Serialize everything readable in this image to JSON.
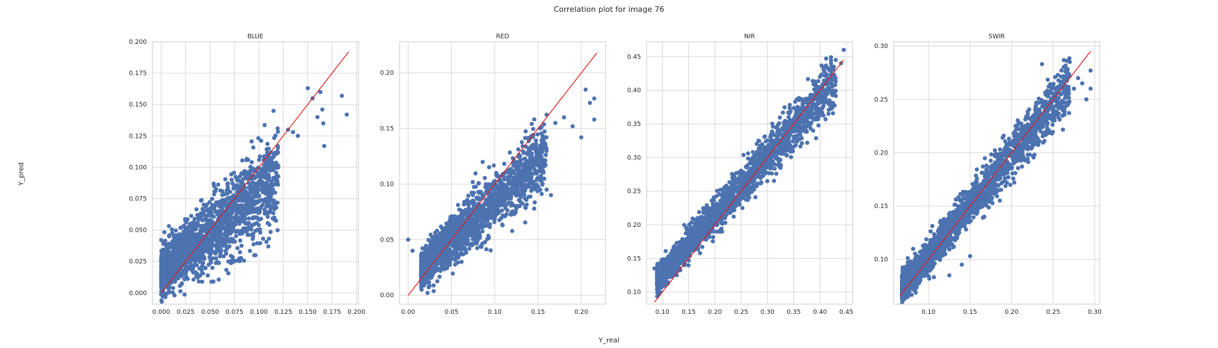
{
  "figure": {
    "title": "Correlation plot for image 76",
    "xlabel": "Y_real",
    "ylabel": "Y_pred"
  },
  "colors": {
    "points": "#4c72b0",
    "identity_line": "#e41a1c",
    "grid": "#d9d9d9",
    "spine": "#cccccc",
    "text": "#262626"
  },
  "chart_data": [
    {
      "type": "scatter",
      "title": "BLUE",
      "xlim": [
        -0.009,
        0.202
      ],
      "ylim": [
        -0.009,
        0.2
      ],
      "xticks": [
        "0.000",
        "0.025",
        "0.050",
        "0.075",
        "0.100",
        "0.125",
        "0.150",
        "0.175",
        "0.200"
      ],
      "yticks": [
        "0.000",
        "0.025",
        "0.050",
        "0.075",
        "0.100",
        "0.125",
        "0.150",
        "0.175",
        "0.200"
      ],
      "grid": true,
      "identity_line": [
        0.0,
        0.192
      ],
      "cloud": {
        "x_range": [
          0.0,
          0.12
        ],
        "intercept": 0.016,
        "slope": 0.62,
        "spread": 0.012,
        "n": 1900
      },
      "points": [
        [
          0.15,
          0.163
        ],
        [
          0.155,
          0.155
        ],
        [
          0.163,
          0.16
        ],
        [
          0.165,
          0.146
        ],
        [
          0.166,
          0.135
        ],
        [
          0.167,
          0.117
        ],
        [
          0.185,
          0.157
        ],
        [
          0.19,
          0.142
        ],
        [
          0.115,
          0.145
        ],
        [
          0.13,
          0.13
        ],
        [
          0.135,
          0.128
        ],
        [
          0.14,
          0.125
        ],
        [
          0.16,
          0.14
        ]
      ]
    },
    {
      "type": "scatter",
      "title": "RED",
      "xlim": [
        -0.01,
        0.228
      ],
      "ylim": [
        -0.008,
        0.228
      ],
      "xticks": [
        "0.00",
        "0.05",
        "0.10",
        "0.15",
        "0.20"
      ],
      "yticks": [
        "0.00",
        "0.05",
        "0.10",
        "0.15",
        "0.20"
      ],
      "grid": true,
      "identity_line": [
        0.0,
        0.218
      ],
      "cloud": {
        "x_range": [
          0.015,
          0.16
        ],
        "intercept": 0.012,
        "slope": 0.73,
        "spread": 0.01,
        "n": 1900
      },
      "points": [
        [
          0.205,
          0.185
        ],
        [
          0.215,
          0.177
        ],
        [
          0.21,
          0.173
        ],
        [
          0.215,
          0.158
        ],
        [
          0.2,
          0.142
        ],
        [
          0.19,
          0.152
        ],
        [
          0.18,
          0.16
        ],
        [
          0.17,
          0.155
        ],
        [
          0.005,
          0.04
        ],
        [
          0.0,
          0.05
        ],
        [
          0.16,
          0.095
        ],
        [
          0.165,
          0.09
        ]
      ]
    },
    {
      "type": "scatter",
      "title": "NIR",
      "xlim": [
        0.07,
        0.462
      ],
      "ylim": [
        0.082,
        0.472
      ],
      "xticks": [
        "0.10",
        "0.15",
        "0.20",
        "0.25",
        "0.30",
        "0.35",
        "0.40",
        "0.45"
      ],
      "yticks": [
        "0.10",
        "0.15",
        "0.20",
        "0.25",
        "0.30",
        "0.35",
        "0.40",
        "0.45"
      ],
      "grid": true,
      "identity_line": [
        0.085,
        0.445
      ],
      "cloud": {
        "x_range": [
          0.09,
          0.43
        ],
        "intercept": 0.04,
        "slope": 0.87,
        "spread": 0.012,
        "n": 2300
      },
      "points": [
        [
          0.445,
          0.46
        ],
        [
          0.44,
          0.44
        ],
        [
          0.43,
          0.445
        ],
        [
          0.09,
          0.12
        ],
        [
          0.085,
          0.135
        ],
        [
          0.1,
          0.115
        ]
      ]
    },
    {
      "type": "scatter",
      "title": "SWIR",
      "xlim": [
        0.058,
        0.306
      ],
      "ylim": [
        0.058,
        0.304
      ],
      "xticks": [
        "0.10",
        "0.15",
        "0.20",
        "0.25",
        "0.30"
      ],
      "yticks": [
        "0.10",
        "0.15",
        "0.20",
        "0.25",
        "0.30"
      ],
      "grid": true,
      "identity_line": [
        0.066,
        0.295
      ],
      "cloud": {
        "x_range": [
          0.068,
          0.27
        ],
        "intercept": 0.008,
        "slope": 0.95,
        "spread": 0.008,
        "n": 2200
      },
      "points": [
        [
          0.295,
          0.277
        ],
        [
          0.28,
          0.27
        ],
        [
          0.29,
          0.25
        ],
        [
          0.285,
          0.265
        ],
        [
          0.27,
          0.285
        ],
        [
          0.275,
          0.26
        ],
        [
          0.295,
          0.26
        ],
        [
          0.125,
          0.085
        ],
        [
          0.14,
          0.095
        ],
        [
          0.15,
          0.103
        ]
      ]
    }
  ]
}
